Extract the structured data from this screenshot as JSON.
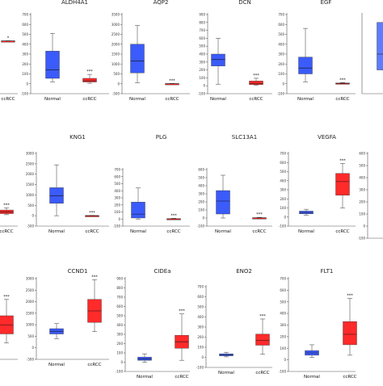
{
  "colors": {
    "normal": "#3b5bfa",
    "normal_light": "#5d7cff",
    "ccrcc": "#ff2a2a",
    "whisker": "#555555",
    "median": "#111111"
  },
  "chart_data": [
    {
      "type": "box",
      "title": "",
      "categories": [
        "ccRCC"
      ],
      "ticks": [
        "-100"
      ],
      "ylim": [
        -100,
        50
      ],
      "boxes": [
        {
          "name": "ccRCC",
          "min": 0,
          "q1": 0,
          "median": 0,
          "q3": 0,
          "max": 0,
          "color": "#ff2a2a"
        }
      ],
      "sig": [
        "*"
      ]
    },
    {
      "type": "box",
      "title": "ALDH4A1",
      "categories": [
        "Normal",
        "ccRCC"
      ],
      "ticks": [
        "-100",
        "0",
        "100",
        "200",
        "300",
        "400",
        "500",
        "600",
        "700"
      ],
      "ylim": [
        -100,
        700
      ],
      "boxes": [
        {
          "name": "Normal",
          "min": 20,
          "q1": 55,
          "median": 140,
          "q3": 330,
          "max": 510,
          "color": "#3b5bfa"
        },
        {
          "name": "ccRCC",
          "min": 5,
          "q1": 18,
          "median": 30,
          "q3": 55,
          "max": 95,
          "color": "#ff2a2a"
        }
      ],
      "sig": [
        "",
        "***"
      ]
    },
    {
      "type": "box",
      "title": "AQP2",
      "categories": [
        "Normal",
        "ccRCC"
      ],
      "ticks": [
        "-500",
        "0",
        "500",
        "1000",
        "1500",
        "2000",
        "2500",
        "3000",
        "3500"
      ],
      "ylim": [
        -500,
        3500
      ],
      "boxes": [
        {
          "name": "Normal",
          "min": 50,
          "q1": 550,
          "median": 1150,
          "q3": 2000,
          "max": 2950,
          "color": "#3b5bfa"
        },
        {
          "name": "ccRCC",
          "min": 0,
          "q1": 0,
          "median": 5,
          "q3": 10,
          "max": 15,
          "color": "#ff2a2a"
        }
      ],
      "sig": [
        "",
        "***"
      ]
    },
    {
      "type": "box",
      "title": "DCN",
      "categories": [
        "Normal",
        "ccRCC"
      ],
      "ticks": [
        "-100",
        "0",
        "100",
        "200",
        "300",
        "400",
        "500",
        "600",
        "700",
        "800",
        "900"
      ],
      "ylim": [
        -100,
        900
      ],
      "boxes": [
        {
          "name": "Normal",
          "min": 20,
          "q1": 250,
          "median": 330,
          "q3": 400,
          "max": 600,
          "color": "#3b5bfa"
        },
        {
          "name": "ccRCC",
          "min": 5,
          "q1": 15,
          "median": 30,
          "q3": 60,
          "max": 95,
          "color": "#ff2a2a"
        }
      ],
      "sig": [
        "",
        "***"
      ]
    },
    {
      "type": "box",
      "title": "EGF",
      "categories": [
        "Normal",
        "ccRCC"
      ],
      "ticks": [
        "-100",
        "0",
        "100",
        "200",
        "300",
        "400",
        "500",
        "600",
        "700"
      ],
      "ylim": [
        -100,
        700
      ],
      "boxes": [
        {
          "name": "Normal",
          "min": 20,
          "q1": 100,
          "median": 160,
          "q3": 270,
          "max": 560,
          "color": "#3b5bfa"
        },
        {
          "name": "ccRCC",
          "min": 0,
          "q1": 0,
          "median": 3,
          "q3": 8,
          "max": 12,
          "color": "#ff2a2a"
        }
      ],
      "sig": [
        "",
        "***"
      ]
    },
    {
      "type": "box",
      "title": "",
      "categories": [],
      "ticks": [],
      "ylim": [
        0,
        100
      ],
      "boxes": [
        {
          "name": "Normal",
          "min": 30,
          "q1": 30,
          "median": 50,
          "q3": 90,
          "max": 90,
          "color": "#5d7cff"
        }
      ],
      "sig": []
    },
    {
      "type": "box",
      "title": "",
      "categories": [
        "ccRCC"
      ],
      "ticks": [],
      "ylim": [
        -100,
        600
      ],
      "boxes": [
        {
          "name": "ccRCC",
          "min": 10,
          "q1": 20,
          "median": 35,
          "q3": 55,
          "max": 75,
          "color": "#ff2a2a"
        }
      ],
      "sig": [
        "***"
      ]
    },
    {
      "type": "box",
      "title": "KNG1",
      "categories": [
        "Normal",
        "ccRCC"
      ],
      "ticks": [
        "-500",
        "0",
        "500",
        "1000",
        "1500",
        "2000",
        "2500",
        "3000"
      ],
      "ylim": [
        -500,
        3000
      ],
      "boxes": [
        {
          "name": "Normal",
          "min": 0,
          "q1": 600,
          "median": 950,
          "q3": 1350,
          "max": 2450,
          "color": "#3b5bfa"
        },
        {
          "name": "ccRCC",
          "min": 0,
          "q1": 0,
          "median": 5,
          "q3": 10,
          "max": 15,
          "color": "#ff2a2a"
        }
      ],
      "sig": [
        "",
        "***"
      ]
    },
    {
      "type": "box",
      "title": "PLG",
      "categories": [
        "Normal",
        "ccRCC"
      ],
      "ticks": [
        "-100",
        "0",
        "100",
        "200",
        "300",
        "400",
        "500",
        "600",
        "700"
      ],
      "ylim": [
        -100,
        700
      ],
      "boxes": [
        {
          "name": "Normal",
          "min": 0,
          "q1": 15,
          "median": 70,
          "q3": 240,
          "max": 440,
          "color": "#3b5bfa"
        },
        {
          "name": "ccRCC",
          "min": 0,
          "q1": 0,
          "median": 3,
          "q3": 6,
          "max": 10,
          "color": "#ff2a2a"
        }
      ],
      "sig": [
        "",
        "***"
      ]
    },
    {
      "type": "box",
      "title": "SLC13A1",
      "categories": [
        "Normal",
        "ccRCC"
      ],
      "ticks": [
        "-100",
        "0",
        "100",
        "200",
        "300",
        "400",
        "500",
        "600"
      ],
      "ylim": [
        -100,
        600
      ],
      "boxes": [
        {
          "name": "Normal",
          "min": 0,
          "q1": 50,
          "median": 210,
          "q3": 340,
          "max": 530,
          "color": "#3b5bfa"
        },
        {
          "name": "ccRCC",
          "min": 0,
          "q1": 0,
          "median": 2,
          "q3": 4,
          "max": 8,
          "color": "#ff2a2a"
        }
      ],
      "sig": [
        "",
        "***"
      ]
    },
    {
      "type": "box",
      "title": "VEGFA",
      "categories": [
        "Normal",
        "ccRCC"
      ],
      "ticks": [
        "-100",
        "0",
        "100",
        "200",
        "300",
        "400",
        "500",
        "600",
        "700"
      ],
      "ylim": [
        -100,
        700
      ],
      "boxes": [
        {
          "name": "Normal",
          "min": 20,
          "q1": 35,
          "median": 50,
          "q3": 65,
          "max": 85,
          "color": "#3b5bfa"
        },
        {
          "name": "ccRCC",
          "min": 100,
          "q1": 240,
          "median": 390,
          "q3": 480,
          "max": 590,
          "color": "#ff2a2a"
        }
      ],
      "sig": [
        "",
        "***"
      ]
    },
    {
      "type": "box",
      "title": "",
      "categories": [],
      "ticks": [
        "-100",
        "0",
        "100",
        "200",
        "300",
        "400",
        "500",
        "600"
      ],
      "ylim": [
        -100,
        600
      ],
      "boxes": [],
      "sig": []
    },
    {
      "type": "box",
      "title": "",
      "categories": [],
      "ticks": [],
      "ylim": [
        -100,
        700
      ],
      "boxes": [
        {
          "name": "ccRCC",
          "min": 80,
          "q1": 180,
          "median": 280,
          "q3": 380,
          "max": 560,
          "color": "#ff2a2a"
        }
      ],
      "sig": [
        "***"
      ]
    },
    {
      "type": "box",
      "title": "CCND1",
      "categories": [
        "Normal",
        "ccRCC"
      ],
      "ticks": [
        "-500",
        "0",
        "500",
        "1000",
        "1500",
        "2000",
        "2500",
        "3000"
      ],
      "ylim": [
        -500,
        3000
      ],
      "boxes": [
        {
          "name": "Normal",
          "min": 400,
          "q1": 600,
          "median": 720,
          "q3": 830,
          "max": 1050,
          "color": "#3b5bfa"
        },
        {
          "name": "ccRCC",
          "min": 700,
          "q1": 1100,
          "median": 1600,
          "q3": 2100,
          "max": 2950,
          "color": "#ff2a2a"
        }
      ],
      "sig": [
        "",
        "***"
      ]
    },
    {
      "type": "box",
      "title": "CIDEa",
      "categories": [
        "Normal",
        "ccRCC"
      ],
      "ticks": [
        "-100",
        "0",
        "100",
        "200",
        "300",
        "400",
        "500",
        "600",
        "700",
        "800",
        "900"
      ],
      "ylim": [
        -100,
        900
      ],
      "boxes": [
        {
          "name": "Normal",
          "min": 0,
          "q1": 20,
          "median": 35,
          "q3": 55,
          "max": 90,
          "color": "#3b5bfa"
        },
        {
          "name": "ccRCC",
          "min": 20,
          "q1": 150,
          "median": 220,
          "q3": 290,
          "max": 520,
          "color": "#ff2a2a"
        }
      ],
      "sig": [
        "",
        "***"
      ]
    },
    {
      "type": "box",
      "title": "ENO2",
      "categories": [
        "Normal",
        "ccRCC"
      ],
      "ticks": [
        "-100",
        "0",
        "100",
        "200",
        "300",
        "400",
        "500",
        "600",
        "700"
      ],
      "ylim": [
        -100,
        700
      ],
      "boxes": [
        {
          "name": "Normal",
          "min": 5,
          "q1": 15,
          "median": 25,
          "q3": 35,
          "max": 50,
          "color": "#3b5bfa"
        },
        {
          "name": "ccRCC",
          "min": 30,
          "q1": 120,
          "median": 170,
          "q3": 230,
          "max": 380,
          "color": "#ff2a2a"
        }
      ],
      "sig": [
        "",
        "***"
      ]
    },
    {
      "type": "box",
      "title": "FLT1",
      "categories": [
        "Normal",
        "ccRCC"
      ],
      "ticks": [
        "-100",
        "0",
        "100",
        "200",
        "300",
        "400",
        "500",
        "600",
        "700"
      ],
      "ylim": [
        -100,
        700
      ],
      "boxes": [
        {
          "name": "Normal",
          "min": 20,
          "q1": 40,
          "median": 60,
          "q3": 80,
          "max": 130,
          "color": "#3b5bfa"
        },
        {
          "name": "ccRCC",
          "min": 40,
          "q1": 130,
          "median": 220,
          "q3": 330,
          "max": 530,
          "color": "#ff2a2a"
        }
      ],
      "sig": [
        "",
        "***"
      ]
    }
  ]
}
